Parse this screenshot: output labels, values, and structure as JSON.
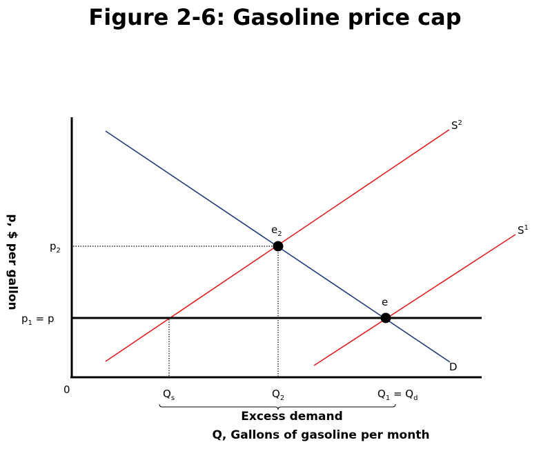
{
  "title": "Figure 2-6: Gasoline price cap",
  "chart_data": {
    "type": "line",
    "title": "Figure 2-6: Gasoline price cap",
    "ylabel": "p, $ per gallon",
    "xlabel": "Q, Gallons of gasoline per month",
    "origin_label": "0",
    "x_ticks": [
      "Qs",
      "Q2",
      "Q1 = Qd"
    ],
    "y_ticks": [
      "p2",
      "p1 = p"
    ],
    "bracket_label": "Excess demand",
    "series": [
      {
        "name": "D",
        "color": "#1f3a7a"
      },
      {
        "name": "S1",
        "color": "#e02020"
      },
      {
        "name": "S2",
        "color": "#e02020"
      },
      {
        "name": "",
        "color": "#000000"
      }
    ],
    "points": [
      {
        "name": "e2"
      },
      {
        "name": "e"
      }
    ]
  }
}
